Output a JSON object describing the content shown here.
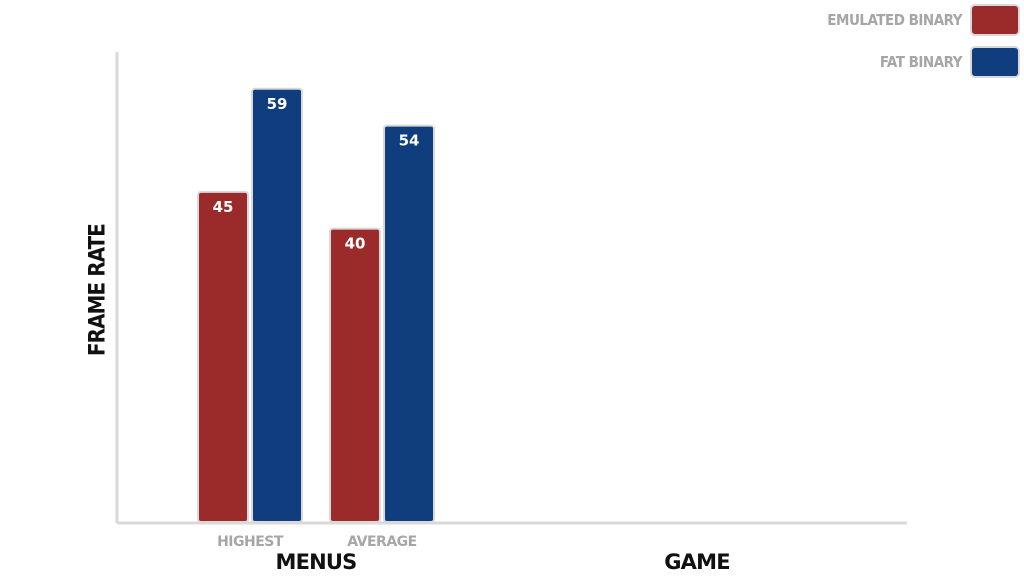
{
  "chart_data": {
    "type": "bar",
    "ylabel": "Frame Rate",
    "groups": [
      {
        "label": "Menus",
        "categories": [
          "Highest",
          "Average"
        ]
      },
      {
        "label": "Game",
        "categories": []
      }
    ],
    "categories": [
      "Highest",
      "Average"
    ],
    "series": [
      {
        "name": "Emulated Binary",
        "color": "#9b2b2b",
        "values": [
          45,
          40
        ]
      },
      {
        "name": "Fat Binary",
        "color": "#0f3d7d",
        "values": [
          59,
          54
        ]
      }
    ],
    "ylim": [
      0,
      64
    ],
    "legend": "top-right",
    "grid": false
  }
}
